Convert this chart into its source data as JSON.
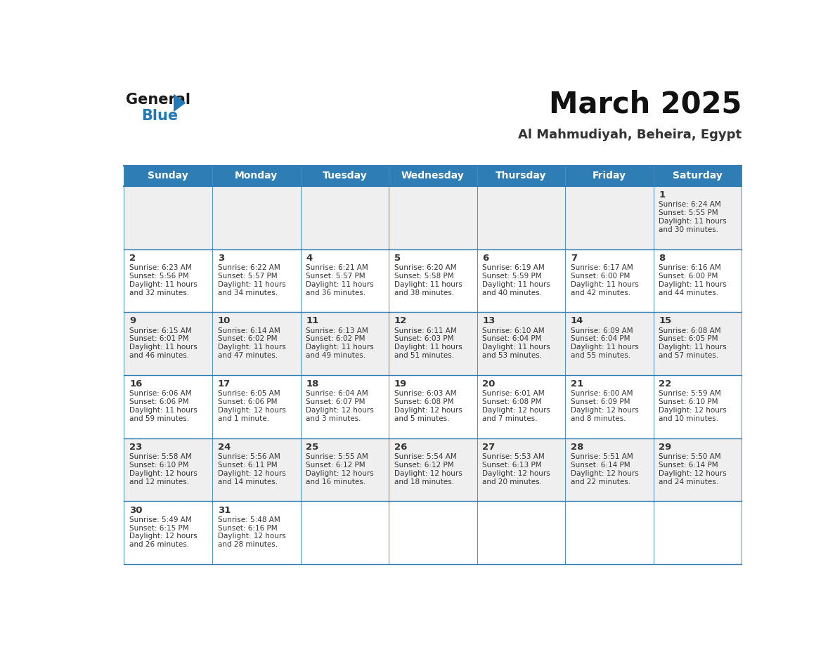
{
  "title": "March 2025",
  "subtitle": "Al Mahmudiyah, Beheira, Egypt",
  "header_color": "#2E7DB5",
  "header_text_color": "#FFFFFF",
  "background_color": "#FFFFFF",
  "cell_bg_odd": "#EFEFEF",
  "cell_bg_even": "#FFFFFF",
  "border_color": "#2E7DB5",
  "day_headers": [
    "Sunday",
    "Monday",
    "Tuesday",
    "Wednesday",
    "Thursday",
    "Friday",
    "Saturday"
  ],
  "days": [
    {
      "day": 1,
      "col": 6,
      "row": 0,
      "sunrise": "6:24 AM",
      "sunset": "5:55 PM",
      "dl_line1": "Daylight: 11 hours",
      "dl_line2": "and 30 minutes."
    },
    {
      "day": 2,
      "col": 0,
      "row": 1,
      "sunrise": "6:23 AM",
      "sunset": "5:56 PM",
      "dl_line1": "Daylight: 11 hours",
      "dl_line2": "and 32 minutes."
    },
    {
      "day": 3,
      "col": 1,
      "row": 1,
      "sunrise": "6:22 AM",
      "sunset": "5:57 PM",
      "dl_line1": "Daylight: 11 hours",
      "dl_line2": "and 34 minutes."
    },
    {
      "day": 4,
      "col": 2,
      "row": 1,
      "sunrise": "6:21 AM",
      "sunset": "5:57 PM",
      "dl_line1": "Daylight: 11 hours",
      "dl_line2": "and 36 minutes."
    },
    {
      "day": 5,
      "col": 3,
      "row": 1,
      "sunrise": "6:20 AM",
      "sunset": "5:58 PM",
      "dl_line1": "Daylight: 11 hours",
      "dl_line2": "and 38 minutes."
    },
    {
      "day": 6,
      "col": 4,
      "row": 1,
      "sunrise": "6:19 AM",
      "sunset": "5:59 PM",
      "dl_line1": "Daylight: 11 hours",
      "dl_line2": "and 40 minutes."
    },
    {
      "day": 7,
      "col": 5,
      "row": 1,
      "sunrise": "6:17 AM",
      "sunset": "6:00 PM",
      "dl_line1": "Daylight: 11 hours",
      "dl_line2": "and 42 minutes."
    },
    {
      "day": 8,
      "col": 6,
      "row": 1,
      "sunrise": "6:16 AM",
      "sunset": "6:00 PM",
      "dl_line1": "Daylight: 11 hours",
      "dl_line2": "and 44 minutes."
    },
    {
      "day": 9,
      "col": 0,
      "row": 2,
      "sunrise": "6:15 AM",
      "sunset": "6:01 PM",
      "dl_line1": "Daylight: 11 hours",
      "dl_line2": "and 46 minutes."
    },
    {
      "day": 10,
      "col": 1,
      "row": 2,
      "sunrise": "6:14 AM",
      "sunset": "6:02 PM",
      "dl_line1": "Daylight: 11 hours",
      "dl_line2": "and 47 minutes."
    },
    {
      "day": 11,
      "col": 2,
      "row": 2,
      "sunrise": "6:13 AM",
      "sunset": "6:02 PM",
      "dl_line1": "Daylight: 11 hours",
      "dl_line2": "and 49 minutes."
    },
    {
      "day": 12,
      "col": 3,
      "row": 2,
      "sunrise": "6:11 AM",
      "sunset": "6:03 PM",
      "dl_line1": "Daylight: 11 hours",
      "dl_line2": "and 51 minutes."
    },
    {
      "day": 13,
      "col": 4,
      "row": 2,
      "sunrise": "6:10 AM",
      "sunset": "6:04 PM",
      "dl_line1": "Daylight: 11 hours",
      "dl_line2": "and 53 minutes."
    },
    {
      "day": 14,
      "col": 5,
      "row": 2,
      "sunrise": "6:09 AM",
      "sunset": "6:04 PM",
      "dl_line1": "Daylight: 11 hours",
      "dl_line2": "and 55 minutes."
    },
    {
      "day": 15,
      "col": 6,
      "row": 2,
      "sunrise": "6:08 AM",
      "sunset": "6:05 PM",
      "dl_line1": "Daylight: 11 hours",
      "dl_line2": "and 57 minutes."
    },
    {
      "day": 16,
      "col": 0,
      "row": 3,
      "sunrise": "6:06 AM",
      "sunset": "6:06 PM",
      "dl_line1": "Daylight: 11 hours",
      "dl_line2": "and 59 minutes."
    },
    {
      "day": 17,
      "col": 1,
      "row": 3,
      "sunrise": "6:05 AM",
      "sunset": "6:06 PM",
      "dl_line1": "Daylight: 12 hours",
      "dl_line2": "and 1 minute."
    },
    {
      "day": 18,
      "col": 2,
      "row": 3,
      "sunrise": "6:04 AM",
      "sunset": "6:07 PM",
      "dl_line1": "Daylight: 12 hours",
      "dl_line2": "and 3 minutes."
    },
    {
      "day": 19,
      "col": 3,
      "row": 3,
      "sunrise": "6:03 AM",
      "sunset": "6:08 PM",
      "dl_line1": "Daylight: 12 hours",
      "dl_line2": "and 5 minutes."
    },
    {
      "day": 20,
      "col": 4,
      "row": 3,
      "sunrise": "6:01 AM",
      "sunset": "6:08 PM",
      "dl_line1": "Daylight: 12 hours",
      "dl_line2": "and 7 minutes."
    },
    {
      "day": 21,
      "col": 5,
      "row": 3,
      "sunrise": "6:00 AM",
      "sunset": "6:09 PM",
      "dl_line1": "Daylight: 12 hours",
      "dl_line2": "and 8 minutes."
    },
    {
      "day": 22,
      "col": 6,
      "row": 3,
      "sunrise": "5:59 AM",
      "sunset": "6:10 PM",
      "dl_line1": "Daylight: 12 hours",
      "dl_line2": "and 10 minutes."
    },
    {
      "day": 23,
      "col": 0,
      "row": 4,
      "sunrise": "5:58 AM",
      "sunset": "6:10 PM",
      "dl_line1": "Daylight: 12 hours",
      "dl_line2": "and 12 minutes."
    },
    {
      "day": 24,
      "col": 1,
      "row": 4,
      "sunrise": "5:56 AM",
      "sunset": "6:11 PM",
      "dl_line1": "Daylight: 12 hours",
      "dl_line2": "and 14 minutes."
    },
    {
      "day": 25,
      "col": 2,
      "row": 4,
      "sunrise": "5:55 AM",
      "sunset": "6:12 PM",
      "dl_line1": "Daylight: 12 hours",
      "dl_line2": "and 16 minutes."
    },
    {
      "day": 26,
      "col": 3,
      "row": 4,
      "sunrise": "5:54 AM",
      "sunset": "6:12 PM",
      "dl_line1": "Daylight: 12 hours",
      "dl_line2": "and 18 minutes."
    },
    {
      "day": 27,
      "col": 4,
      "row": 4,
      "sunrise": "5:53 AM",
      "sunset": "6:13 PM",
      "dl_line1": "Daylight: 12 hours",
      "dl_line2": "and 20 minutes."
    },
    {
      "day": 28,
      "col": 5,
      "row": 4,
      "sunrise": "5:51 AM",
      "sunset": "6:14 PM",
      "dl_line1": "Daylight: 12 hours",
      "dl_line2": "and 22 minutes."
    },
    {
      "day": 29,
      "col": 6,
      "row": 4,
      "sunrise": "5:50 AM",
      "sunset": "6:14 PM",
      "dl_line1": "Daylight: 12 hours",
      "dl_line2": "and 24 minutes."
    },
    {
      "day": 30,
      "col": 0,
      "row": 5,
      "sunrise": "5:49 AM",
      "sunset": "6:15 PM",
      "dl_line1": "Daylight: 12 hours",
      "dl_line2": "and 26 minutes."
    },
    {
      "day": 31,
      "col": 1,
      "row": 5,
      "sunrise": "5:48 AM",
      "sunset": "6:16 PM",
      "dl_line1": "Daylight: 12 hours",
      "dl_line2": "and 28 minutes."
    }
  ],
  "num_rows": 6,
  "logo_color_general": "#1a1a1a",
  "logo_color_blue": "#2279B5",
  "logo_triangle_color": "#2279B5",
  "text_color": "#333333",
  "day_num_fontsize": 9.5,
  "cell_text_fontsize": 7.5,
  "header_fontsize": 10,
  "title_fontsize": 30,
  "subtitle_fontsize": 13
}
